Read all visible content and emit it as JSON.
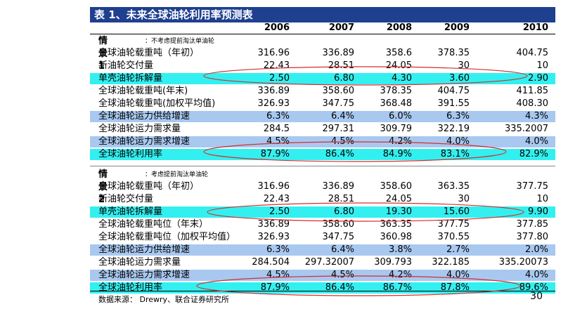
{
  "title": "表 1、未来全球油轮利用率预测表",
  "years": [
    "2006",
    "2007",
    "2008",
    "2009",
    "2010"
  ],
  "scenario1": {
    "label": "情景 1",
    "note": "：不考虑提前淘汰单油轮",
    "rows": [
      {
        "label": "全球油轮载重吨（年初）",
        "style": "plain",
        "values": [
          "316.96",
          "336.89",
          "358.6",
          "378.35",
          "404.75"
        ]
      },
      {
        "label": "新油轮交付量",
        "style": "plain",
        "values": [
          "22.43",
          "28.51",
          "24.05",
          "30",
          "10"
        ]
      },
      {
        "label": "单壳油轮拆解量",
        "style": "cyan",
        "values": [
          "2.50",
          "6.80",
          "4.30",
          "3.60",
          "2.90"
        ]
      },
      {
        "label": "全球油轮载重吨(年末)",
        "style": "plain",
        "values": [
          "336.89",
          "358.60",
          "378.35",
          "404.75",
          "411.85"
        ]
      },
      {
        "label": "全球油轮载重吨(加权平均值)",
        "style": "plain",
        "values": [
          "326.93",
          "347.75",
          "368.48",
          "391.55",
          "408.30"
        ]
      },
      {
        "label": "全球油轮运力供给增速",
        "style": "blue",
        "values": [
          "6.3%",
          "6.4%",
          "6.0%",
          "6.3%",
          "4.3%"
        ]
      },
      {
        "label": "全球油轮运力需求量",
        "style": "plain",
        "values": [
          "284.5",
          "297.31",
          "309.79",
          "322.19",
          "335.2007"
        ]
      },
      {
        "label": "全球油轮运力需求增速",
        "style": "blue",
        "values": [
          "4.5%",
          "4.5%",
          "4.2%",
          "4.0%",
          "4.0%"
        ]
      },
      {
        "label": "全球油轮利用率",
        "style": "cyan",
        "values": [
          "87.9%",
          "86.4%",
          "84.9%",
          "83.1%",
          "82.9%"
        ]
      }
    ]
  },
  "scenario2": {
    "label": "情景 2",
    "note": "：考虑提前淘汰单油轮",
    "rows": [
      {
        "label": "全球油轮载重吨（年初）",
        "style": "plain",
        "values": [
          "316.96",
          "336.89",
          "358.60",
          "363.35",
          "377.75"
        ]
      },
      {
        "label": "新油轮交付量",
        "style": "plain",
        "values": [
          "22.43",
          "28.51",
          "24.05",
          "30",
          "10"
        ]
      },
      {
        "label": "单壳油轮拆解量",
        "style": "cyan",
        "values": [
          "2.50",
          "6.80",
          "19.30",
          "15.60",
          "9.90"
        ]
      },
      {
        "label": "全球油轮载重吨位（年末）",
        "style": "plain",
        "values": [
          "336.89",
          "358.60",
          "363.35",
          "377.75",
          "377.85"
        ]
      },
      {
        "label": "全球油轮载重吨位（加权平均值）",
        "style": "plain",
        "values": [
          "326.93",
          "347.75",
          "360.98",
          "370.55",
          "377.80"
        ]
      },
      {
        "label": "全球油轮运力供给增速",
        "style": "blue",
        "values": [
          "6.3%",
          "6.4%",
          "3.8%",
          "2.7%",
          "2.0%"
        ]
      },
      {
        "label": "全球油轮运力需求量",
        "style": "plain",
        "values": [
          "284.504",
          "297.32007",
          "309.793",
          "322.185",
          "335.20073"
        ]
      },
      {
        "label": "全球油轮运力需求增速",
        "style": "blue",
        "values": [
          "4.5%",
          "4.5%",
          "4.2%",
          "4.0%",
          "4.0%"
        ]
      },
      {
        "label": "全球油轮利用率",
        "style": "cyan",
        "values": [
          "87.9%",
          "86.4%",
          "86.7%",
          "87.8%",
          "89.6%"
        ]
      }
    ]
  },
  "source": "数据来源：  Drewry、联合证券研究所",
  "page_number": "30",
  "colors": {
    "title_bg": "#1f3f8f",
    "cyan_row": "#33f0f0",
    "blue_row": "#a8c8f0",
    "oval": "#d03030"
  }
}
